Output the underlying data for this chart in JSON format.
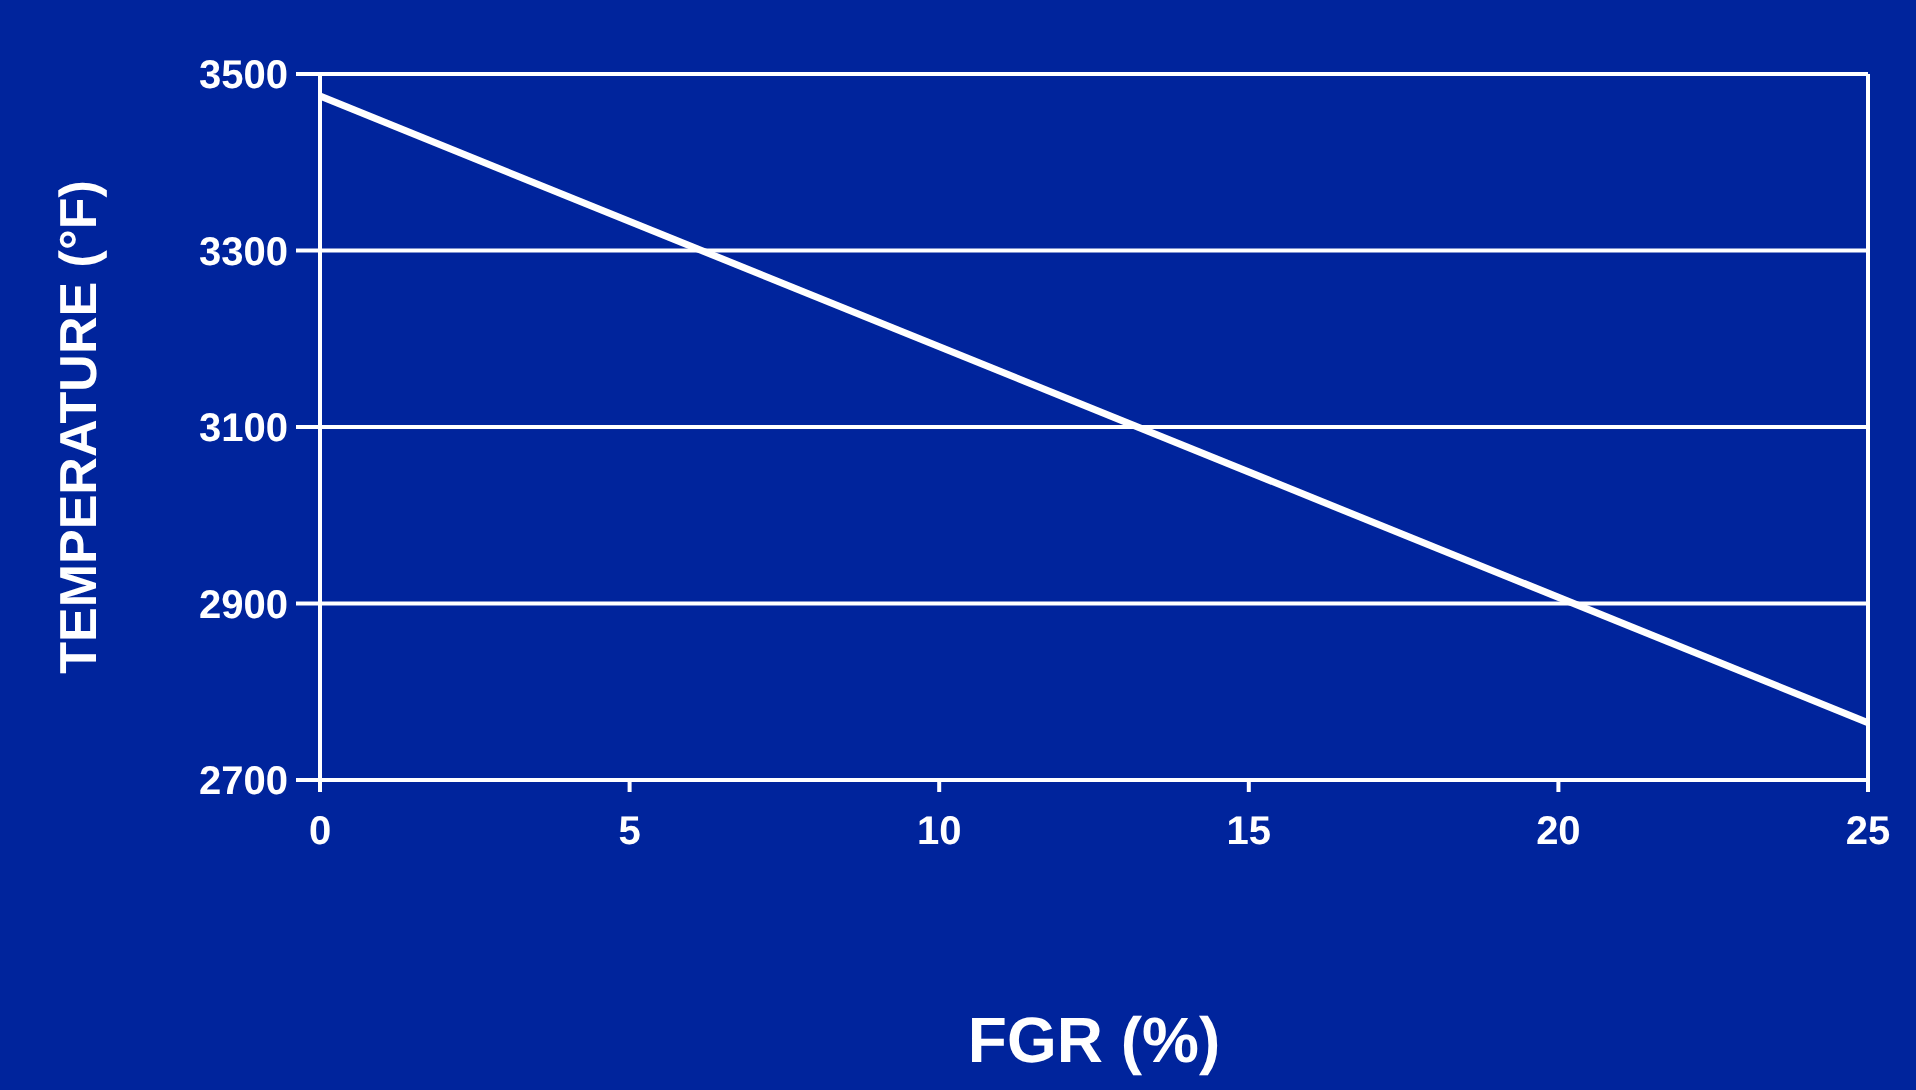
{
  "chart_data": {
    "type": "line",
    "xlabel": "FGR  (%)",
    "ylabel": "TEMPERATURE  (°F)",
    "x": [
      0,
      25
    ],
    "series": [
      {
        "color": "#ffffff",
        "values": [
          3475,
          2765
        ]
      }
    ],
    "xlim": [
      0,
      25
    ],
    "xticks": [
      0,
      5,
      10,
      15,
      20,
      25
    ],
    "ylim": [
      2700,
      3500
    ],
    "yticks": [
      2700,
      2900,
      3100,
      3300,
      3500
    ],
    "grid": "y",
    "marker": "none",
    "line_style": "solid"
  }
}
